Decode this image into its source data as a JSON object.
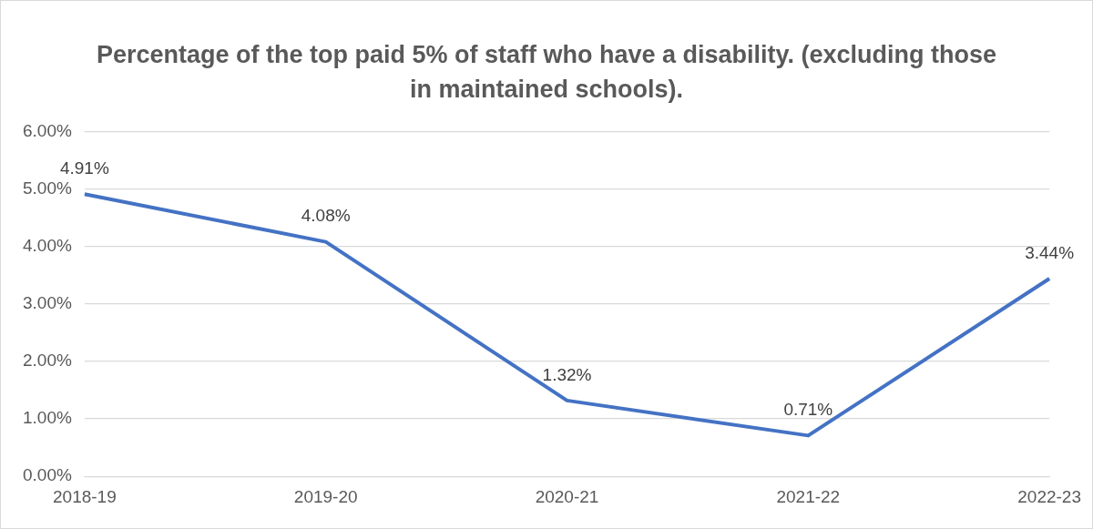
{
  "chart_data": {
    "type": "line",
    "title": "Percentage of the top paid 5% of staff who have a disability. (excluding those in maintained schools).",
    "categories": [
      "2018-19",
      "2019-20",
      "2020-21",
      "2021-22",
      "2022-23"
    ],
    "series": [
      {
        "color": "#4472c4",
        "values": [
          4.91,
          4.08,
          1.32,
          0.71,
          3.44
        ],
        "value_labels": [
          "4.91%",
          "4.08%",
          "1.32%",
          "0.71%",
          "3.44%"
        ]
      }
    ],
    "ylim": [
      0,
      6
    ],
    "yticks": [
      {
        "value": 0,
        "label": "0.00%"
      },
      {
        "value": 1,
        "label": "1.00%"
      },
      {
        "value": 2,
        "label": "2.00%"
      },
      {
        "value": 3,
        "label": "3.00%"
      },
      {
        "value": 4,
        "label": "4.00%"
      },
      {
        "value": 5,
        "label": "5.00%"
      },
      {
        "value": 6,
        "label": "6.00%"
      }
    ],
    "grid": "y",
    "legend": false,
    "marker": "none",
    "line_style": "solid"
  }
}
